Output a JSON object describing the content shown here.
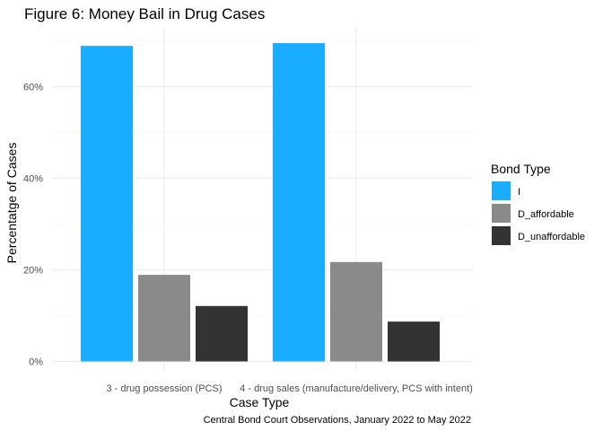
{
  "chart_data": {
    "type": "bar",
    "title": "Figure 6: Money Bail in Drug Cases",
    "xlabel": "Case Type",
    "ylabel": "Percentatge of Cases",
    "caption": "Central Bond Court Observations, January 2022 to May 2022",
    "categories": [
      "3 - drug possession (PCS)",
      "4 - drug sales (manufacture/delivery, PCS with intent)"
    ],
    "series": [
      {
        "name": "I",
        "color": "#1AADFF",
        "values": [
          68.9,
          69.5
        ]
      },
      {
        "name": "D_affordable",
        "color": "#8A8A8A",
        "values": [
          18.9,
          21.7
        ]
      },
      {
        "name": "D_unaffordable",
        "color": "#333333",
        "values": [
          12.1,
          8.7
        ]
      }
    ],
    "ylim": [
      0,
      72
    ],
    "yticks": [
      0,
      20,
      40,
      60
    ],
    "ytick_labels": [
      "0%",
      "20%",
      "40%",
      "60%"
    ],
    "legend_title": "Bond Type",
    "legend_position": "right",
    "grid": true
  }
}
